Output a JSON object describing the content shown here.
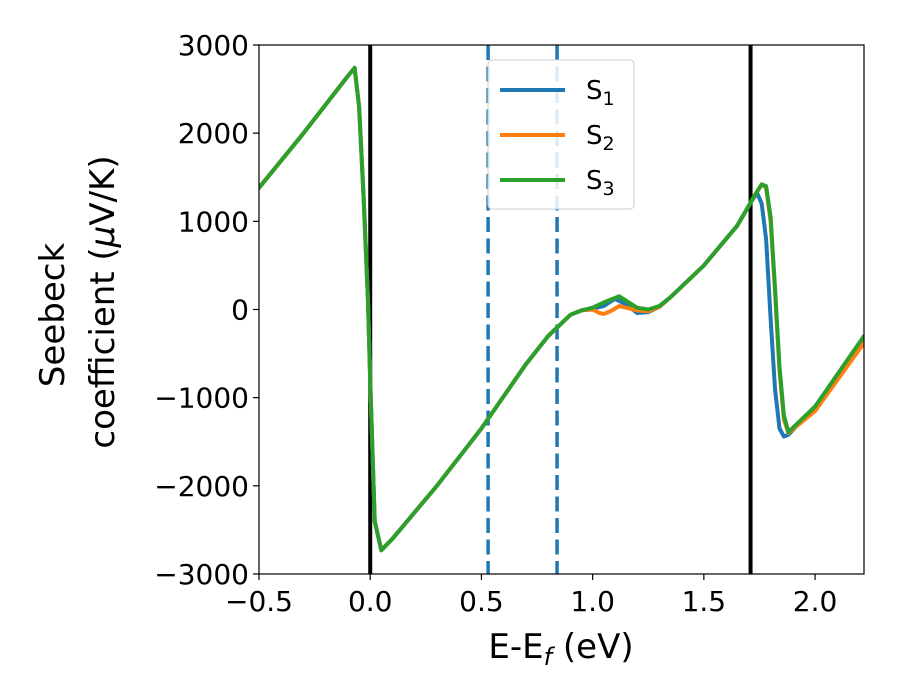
{
  "chart_data": {
    "type": "line",
    "xlabel": {
      "main": "E-E",
      "sub": "f",
      "unit": " (eV)"
    },
    "ylabel": {
      "line1": "Seebeck",
      "line2": "coefficient  (",
      "mu": "μ",
      "unit": "V/K)"
    },
    "xlim": [
      -0.5,
      2.22
    ],
    "ylim": [
      -3000,
      3000
    ],
    "x_ticks": [
      -0.5,
      0.0,
      0.5,
      1.0,
      1.5,
      2.0
    ],
    "x_tick_labels": [
      "−0.5",
      "0.0",
      "0.5",
      "1.0",
      "1.5",
      "2.0"
    ],
    "y_ticks": [
      -3000,
      -2000,
      -1000,
      0,
      1000,
      2000,
      3000
    ],
    "y_tick_labels": [
      "−3000",
      "−2000",
      "−1000",
      "0",
      "1000",
      "2000",
      "3000"
    ],
    "grid": false,
    "legend_position": "top-center",
    "vlines": [
      {
        "x": 0.0,
        "style": "solid",
        "color": "#000000"
      },
      {
        "x": 0.53,
        "style": "dashed",
        "color": "#1f77b4"
      },
      {
        "x": 0.84,
        "style": "dashed",
        "color": "#1f77b4"
      },
      {
        "x": 1.71,
        "style": "solid",
        "color": "#000000"
      }
    ],
    "series": [
      {
        "name": "S",
        "sub": "1",
        "color": "#1f77b4",
        "x": [
          -0.5,
          -0.3,
          -0.1,
          -0.07,
          -0.05,
          -0.03,
          -0.01,
          0.0,
          0.02,
          0.05,
          0.1,
          0.3,
          0.5,
          0.7,
          0.8,
          0.9,
          0.95,
          1.0,
          1.05,
          1.1,
          1.15,
          1.2,
          1.25,
          1.3,
          1.35,
          1.5,
          1.65,
          1.72,
          1.74,
          1.76,
          1.78,
          1.8,
          1.82,
          1.84,
          1.86,
          1.88,
          2.0,
          2.22
        ],
        "y": [
          1380,
          2000,
          2650,
          2740,
          2300,
          1300,
          100,
          -800,
          -2400,
          -2730,
          -2600,
          -2000,
          -1350,
          -620,
          -300,
          -60,
          -10,
          10,
          40,
          120,
          60,
          -40,
          -30,
          30,
          140,
          500,
          950,
          1250,
          1320,
          1200,
          800,
          -100,
          -900,
          -1350,
          -1440,
          -1420,
          -1100,
          -330
        ]
      },
      {
        "name": "S",
        "sub": "2",
        "color": "#ff7f0e",
        "x": [
          -0.5,
          -0.3,
          -0.1,
          -0.07,
          -0.05,
          -0.03,
          -0.01,
          0.0,
          0.02,
          0.05,
          0.1,
          0.3,
          0.5,
          0.7,
          0.8,
          0.9,
          0.95,
          1.0,
          1.03,
          1.05,
          1.08,
          1.12,
          1.15,
          1.2,
          1.25,
          1.3,
          1.35,
          1.5,
          1.65,
          1.73,
          1.76,
          1.78,
          1.8,
          1.82,
          1.84,
          1.86,
          1.88,
          2.0,
          2.22
        ],
        "y": [
          1380,
          2000,
          2650,
          2740,
          2300,
          1300,
          100,
          -800,
          -2400,
          -2730,
          -2600,
          -2000,
          -1350,
          -620,
          -300,
          -60,
          -10,
          0,
          -40,
          -50,
          -20,
          40,
          20,
          -10,
          -20,
          30,
          140,
          500,
          950,
          1300,
          1420,
          1380,
          1000,
          200,
          -700,
          -1250,
          -1400,
          -1150,
          -380
        ]
      },
      {
        "name": "S",
        "sub": "3",
        "color": "#2ca02c",
        "x": [
          -0.5,
          -0.3,
          -0.1,
          -0.07,
          -0.05,
          -0.03,
          -0.01,
          0.0,
          0.02,
          0.05,
          0.1,
          0.3,
          0.5,
          0.7,
          0.8,
          0.9,
          0.95,
          1.0,
          1.05,
          1.1,
          1.12,
          1.15,
          1.2,
          1.25,
          1.3,
          1.35,
          1.5,
          1.65,
          1.73,
          1.76,
          1.78,
          1.8,
          1.82,
          1.84,
          1.86,
          1.88,
          2.0,
          2.22
        ],
        "y": [
          1380,
          2000,
          2650,
          2740,
          2300,
          1300,
          100,
          -800,
          -2400,
          -2730,
          -2600,
          -2000,
          -1350,
          -620,
          -300,
          -60,
          -10,
          20,
          80,
          130,
          150,
          100,
          20,
          0,
          40,
          140,
          500,
          950,
          1300,
          1420,
          1400,
          1050,
          250,
          -650,
          -1200,
          -1390,
          -1100,
          -300
        ]
      }
    ]
  }
}
